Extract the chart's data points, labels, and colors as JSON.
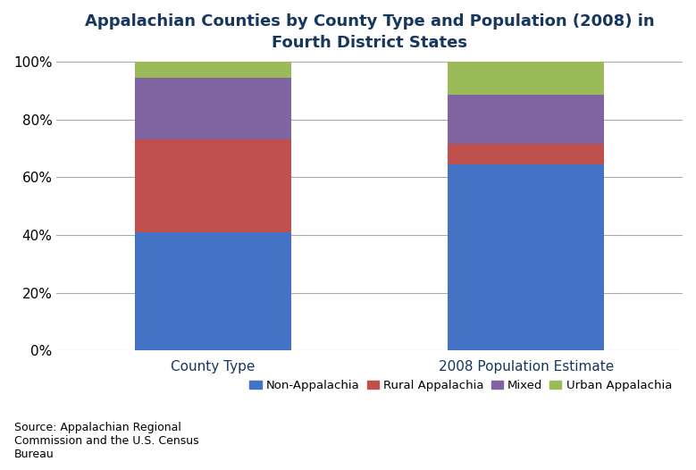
{
  "categories": [
    "County Type",
    "2008 Population Estimate"
  ],
  "series": {
    "Non-Appalachia": [
      0.41,
      0.645
    ],
    "Rural Appalachia": [
      0.32,
      0.07
    ],
    "Mixed": [
      0.215,
      0.17
    ],
    "Urban Appalachia": [
      0.055,
      0.115
    ]
  },
  "colors": {
    "Non-Appalachia": "#4472C4",
    "Rural Appalachia": "#C0504D",
    "Mixed": "#8064A2",
    "Urban Appalachia": "#9BBB59"
  },
  "title": "Appalachian Counties by County Type and Population (2008) in\nFourth District States",
  "title_color": "#17375E",
  "yticks": [
    0.0,
    0.2,
    0.4,
    0.6,
    0.8,
    1.0
  ],
  "ytick_labels": [
    "0%",
    "20%",
    "40%",
    "60%",
    "80%",
    "100%"
  ],
  "source_text": "Source: Appalachian Regional\nCommission and the U.S. Census\nBureau",
  "bar_width": 0.25,
  "x_positions": [
    0.25,
    0.75
  ],
  "xlim": [
    0.0,
    1.0
  ],
  "background_color": "#FFFFFF",
  "grid_color": "#AAAAAA",
  "title_fontsize": 13,
  "label_fontsize": 11,
  "legend_fontsize": 9.5,
  "source_fontsize": 9
}
